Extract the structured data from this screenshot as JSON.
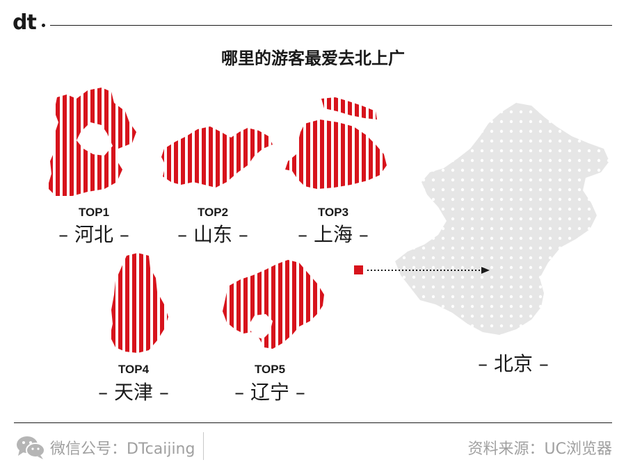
{
  "header": {
    "logo_text": "dt",
    "title": "哪里的游客最爱去北上广"
  },
  "colors": {
    "accent": "#d7131c",
    "map_gray": "#e6e6e6",
    "text": "#1a1a1a",
    "footer_text": "#a0a0a0"
  },
  "provinces": [
    {
      "rank": "TOP1",
      "name": "– 河北 –"
    },
    {
      "rank": "TOP2",
      "name": "– 山东 –"
    },
    {
      "rank": "TOP3",
      "name": "– 上海 –"
    },
    {
      "rank": "TOP4",
      "name": "– 天津 –"
    },
    {
      "rank": "TOP5",
      "name": "– 辽宁 –"
    }
  ],
  "destination": {
    "name": "– 北京 –"
  },
  "footer": {
    "left_text": "微信公号：DTcaijing",
    "right_text": "资料来源：UC浏览器",
    "wechat_icon": "wechat-icon"
  }
}
